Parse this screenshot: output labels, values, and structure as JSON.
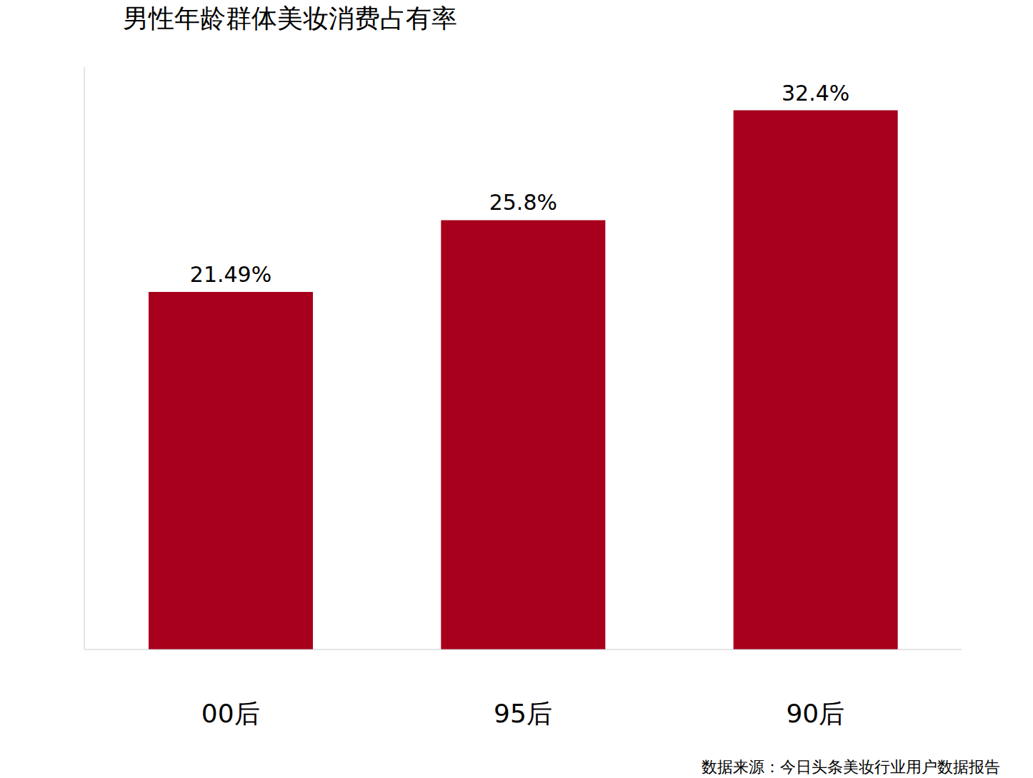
{
  "chart_data": {
    "type": "bar",
    "title": "男性年龄群体美妆消费占有率",
    "categories": [
      "00后",
      "95后",
      "90后"
    ],
    "values": [
      21.49,
      25.8,
      32.4
    ],
    "value_labels": [
      "21.49%",
      "25.8%",
      "32.4%"
    ],
    "color": "#a8001c",
    "ylim": [
      0,
      35
    ],
    "data_labels": true,
    "tick_labels": "x",
    "grid": false,
    "source": "数据来源：今日头条美妆行业用户数据报告"
  }
}
